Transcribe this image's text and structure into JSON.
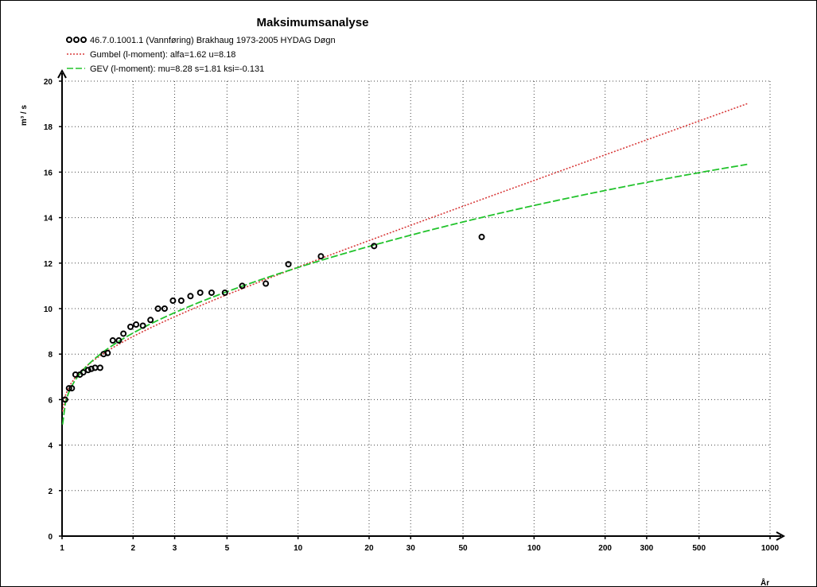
{
  "chart_data": {
    "type": "scatter",
    "title": "Maksimumsanalyse",
    "xlabel": "År",
    "ylabel": "m³ / s",
    "xscale": "log",
    "xlim": [
      1,
      1000
    ],
    "ylim": [
      0,
      20
    ],
    "x_ticks": [
      1,
      2,
      3,
      5,
      10,
      20,
      30,
      50,
      100,
      200,
      300,
      500,
      1000
    ],
    "y_ticks": [
      0,
      2,
      4,
      6,
      8,
      10,
      12,
      14,
      16,
      18,
      20
    ],
    "grid": true,
    "legend_position": "top-left",
    "series": [
      {
        "name": "46.7.0.1001.1 (Vannføring) Brakhaug  1973-2005 HYDAG Døgn",
        "kind": "points",
        "color": "#000000",
        "x": [
          1.03,
          1.07,
          1.1,
          1.14,
          1.19,
          1.23,
          1.29,
          1.33,
          1.38,
          1.45,
          1.5,
          1.56,
          1.64,
          1.74,
          1.82,
          1.95,
          2.06,
          2.2,
          2.37,
          2.55,
          2.72,
          2.95,
          3.2,
          3.5,
          3.85,
          4.3,
          4.9,
          5.8,
          7.3,
          9.1,
          12.5,
          21,
          60
        ],
        "y": [
          6.0,
          6.5,
          6.5,
          7.1,
          7.1,
          7.2,
          7.3,
          7.35,
          7.4,
          7.4,
          8.0,
          8.05,
          8.6,
          8.6,
          8.9,
          9.2,
          9.3,
          9.25,
          9.5,
          10.0,
          10.0,
          10.35,
          10.35,
          10.55,
          10.7,
          10.7,
          10.7,
          11.0,
          11.1,
          11.95,
          12.3,
          12.75,
          13.15
        ]
      },
      {
        "name": "Gumbel (l-moment): alfa=1.62    u=8.18",
        "kind": "line",
        "color": "#d83a3a",
        "alfa": 1.62,
        "u": 8.18,
        "x_range": [
          1.005,
          800
        ]
      },
      {
        "name": "GEV (l-moment): mu=8.28    s=1.81    ksi=-0.131",
        "kind": "line",
        "color": "#22c32c",
        "mu": 8.28,
        "s": 1.81,
        "ksi": -0.131,
        "x_range": [
          1.005,
          800
        ]
      }
    ]
  }
}
